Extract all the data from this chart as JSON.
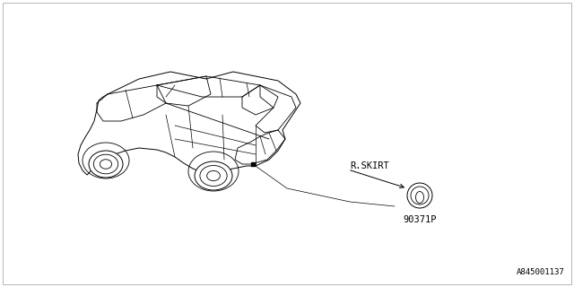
{
  "background_color": "#ffffff",
  "text_color": "#000000",
  "part_label": "R.SKIRT",
  "part_number": "90371P",
  "footer_text": "A845001137",
  "font_size_label": 7.5,
  "font_size_part": 7.5,
  "font_size_footer": 6.5,
  "line_color": "#000000",
  "line_width": 0.6,
  "border_color": "#999999",
  "border_lw": 0.5
}
